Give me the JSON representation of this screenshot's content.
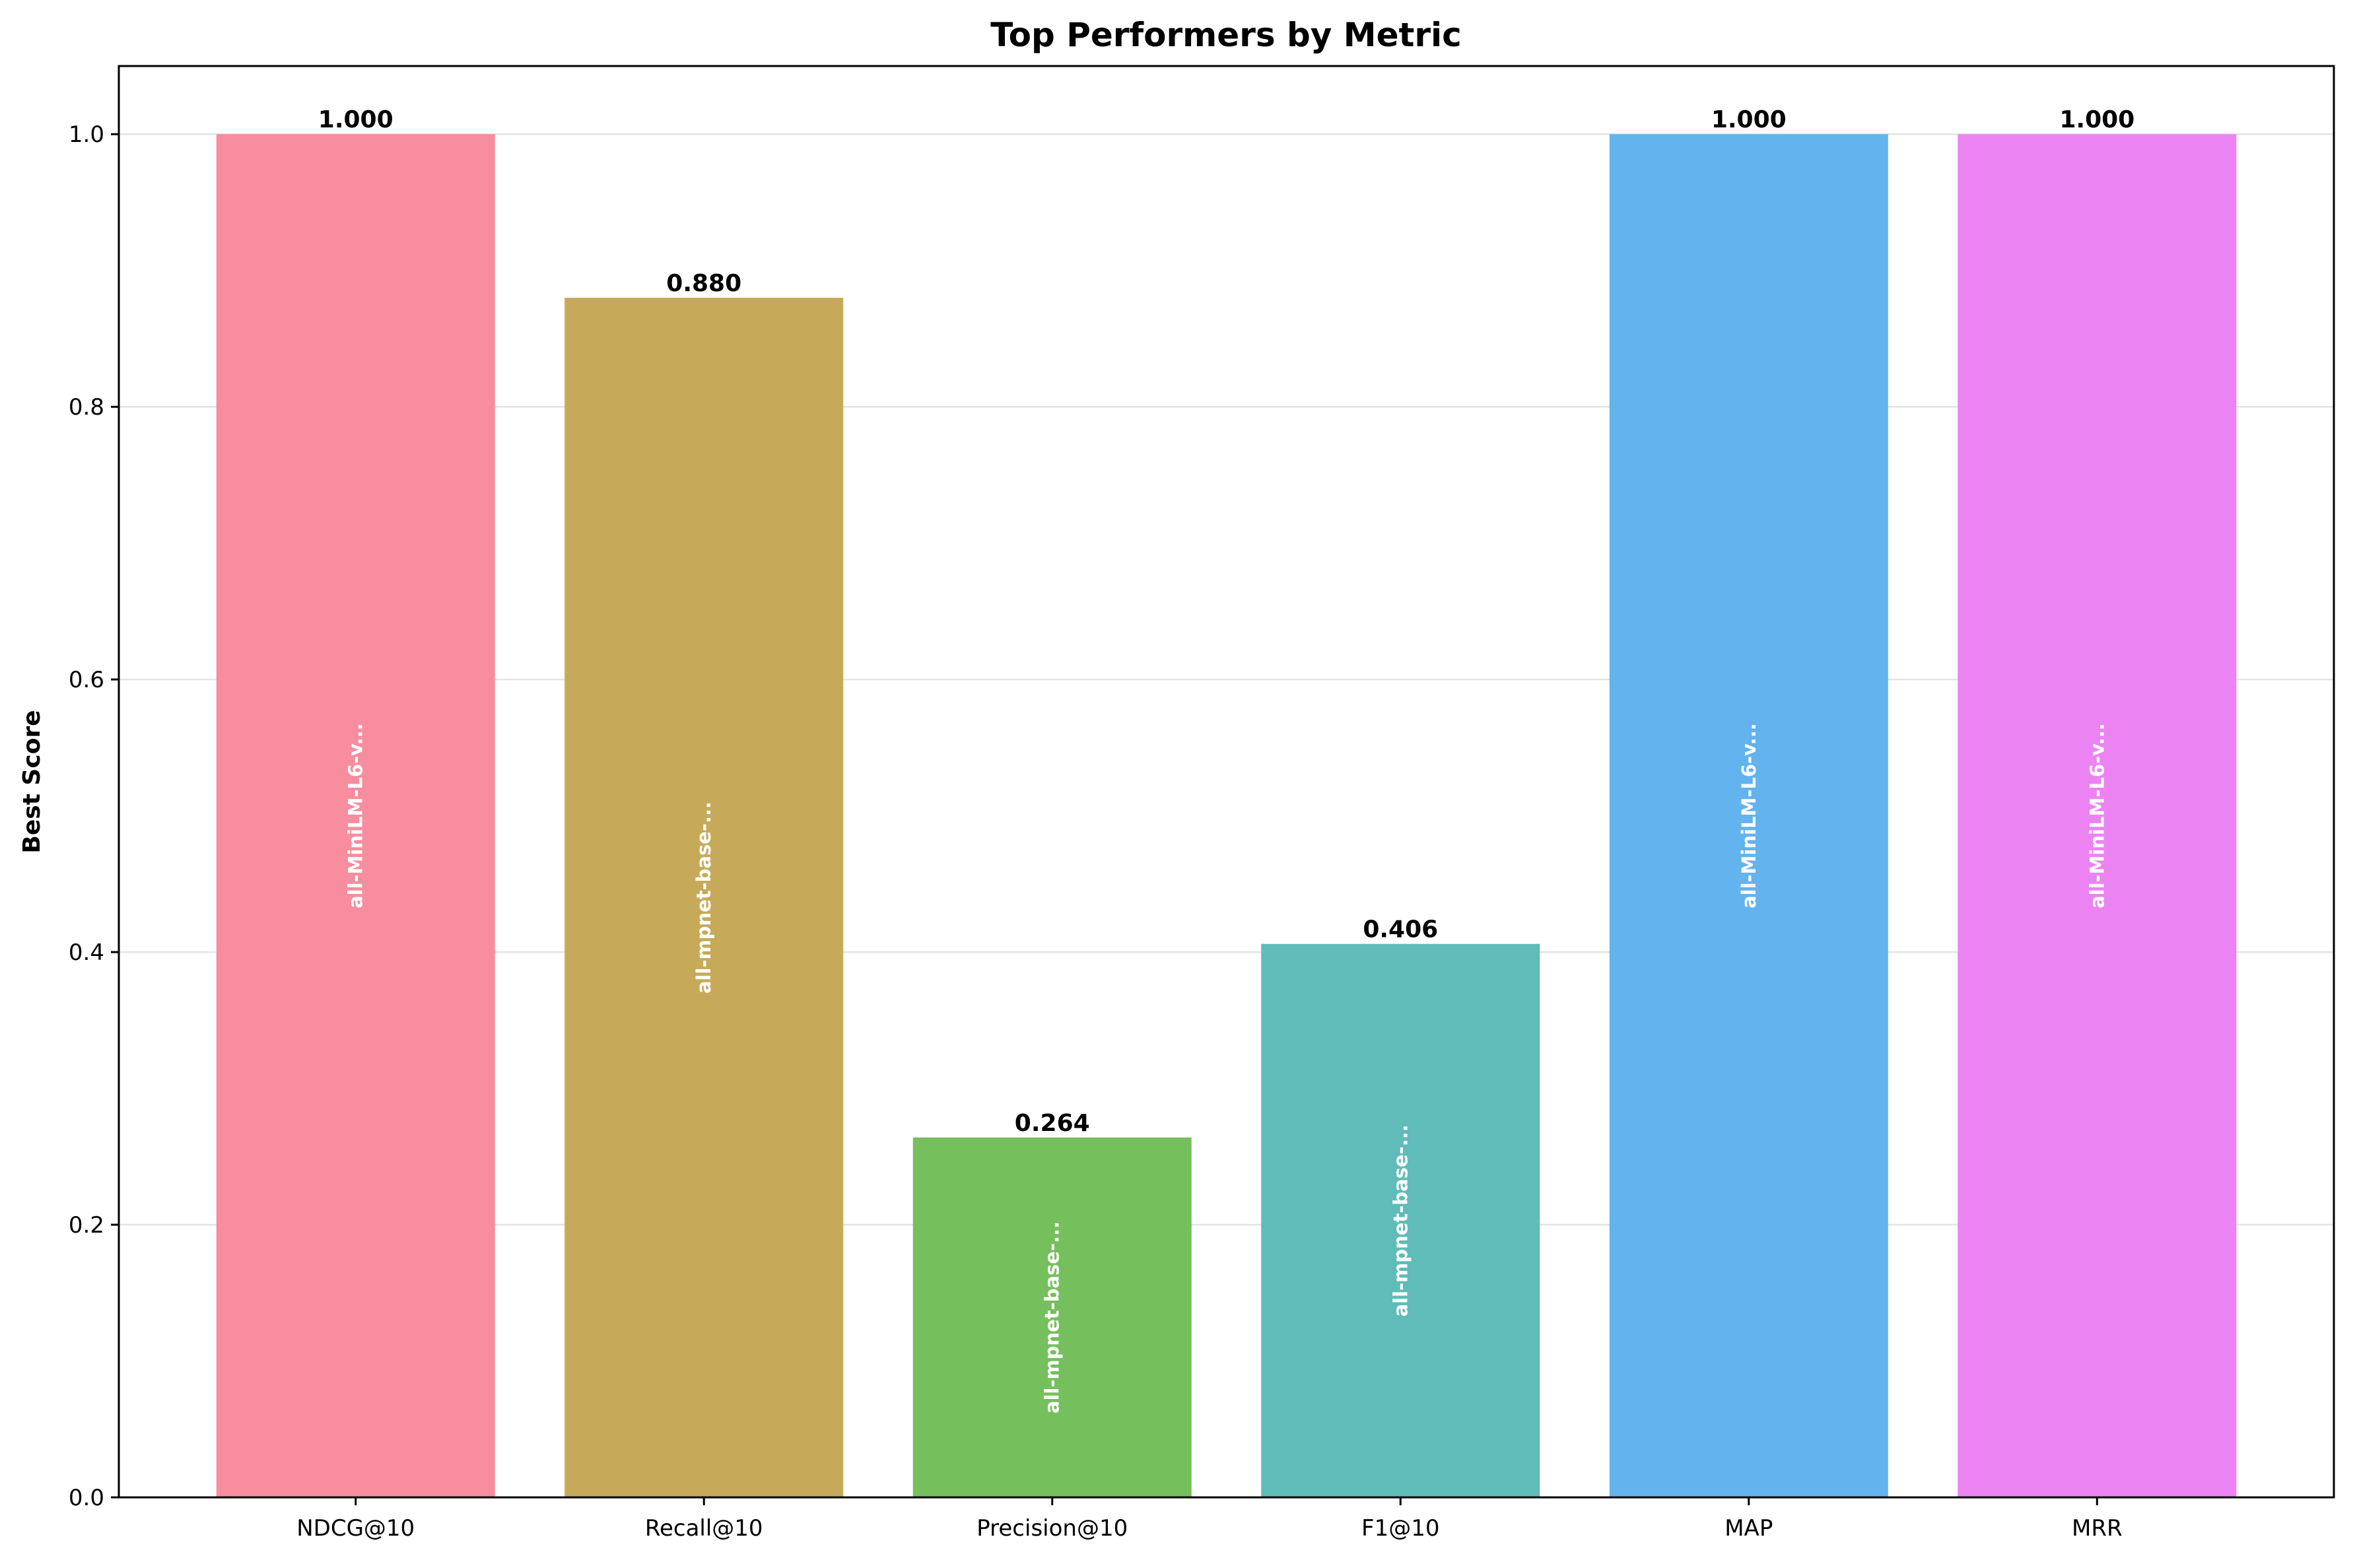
{
  "chart_data": {
    "type": "bar",
    "title": "Top Performers by Metric",
    "xlabel": "",
    "ylabel": "Best Score",
    "ylim": [
      0,
      1.05
    ],
    "yticks": [
      0.0,
      0.2,
      0.4,
      0.6,
      0.8,
      1.0
    ],
    "ytick_labels": [
      "0.0",
      "0.2",
      "0.4",
      "0.6",
      "0.8",
      "1.0"
    ],
    "grid": "y",
    "categories": [
      "NDCG@10",
      "Recall@10",
      "Precision@10",
      "F1@10",
      "MAP",
      "MRR"
    ],
    "values": [
      1.0,
      0.88,
      0.264,
      0.406,
      1.0,
      1.0
    ],
    "value_labels": [
      "1.000",
      "0.880",
      "0.264",
      "0.406",
      "1.000",
      "1.000"
    ],
    "bar_models": [
      "all-MiniLM-L6-v...",
      "all-mpnet-base-...",
      "all-mpnet-base-...",
      "all-mpnet-base-...",
      "all-MiniLM-L6-v...",
      "all-MiniLM-L6-v..."
    ],
    "colors": [
      "#f78d9e",
      "#c7aa59",
      "#75bf5d",
      "#5fbcb8",
      "#62b3ee",
      "#ec83f2"
    ]
  }
}
